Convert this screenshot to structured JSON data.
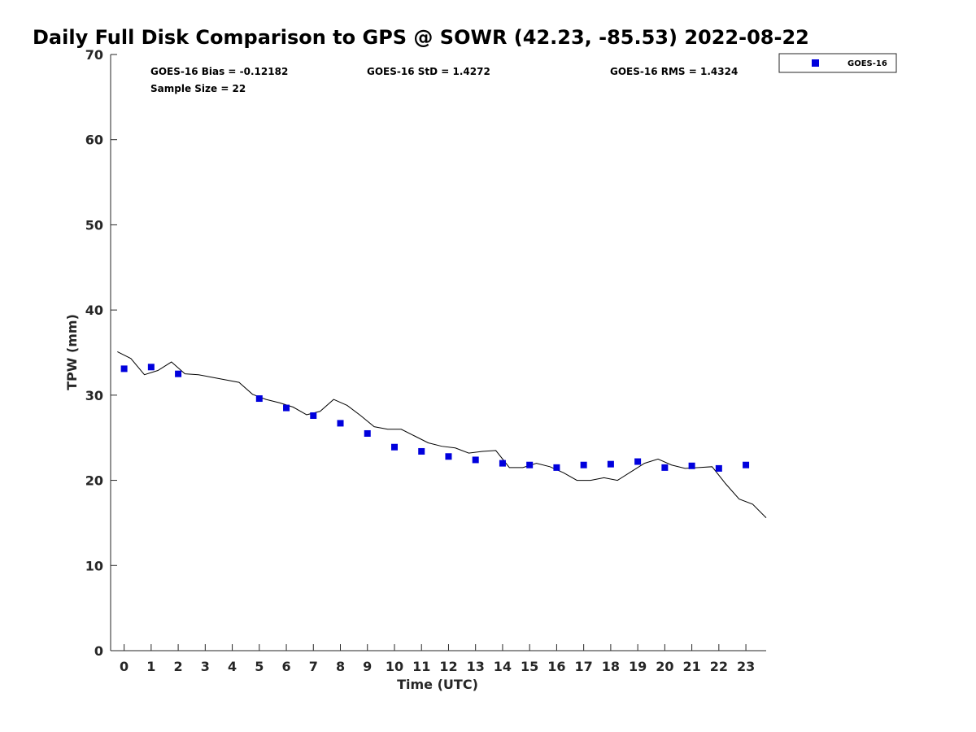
{
  "chart_data": {
    "type": "scatter",
    "title": "Daily Full Disk Comparison to GPS @ SOWR (42.23, -85.53) 2022-08-22",
    "xlabel": "Time (UTC)",
    "ylabel": "TPW (mm)",
    "xlim": [
      -0.5,
      23.75
    ],
    "ylim": [
      0,
      70
    ],
    "x_ticks": [
      "0",
      "1",
      "2",
      "3",
      "4",
      "5",
      "6",
      "7",
      "8",
      "9",
      "10",
      "11",
      "12",
      "13",
      "14",
      "15",
      "16",
      "17",
      "18",
      "19",
      "20",
      "21",
      "22",
      "23"
    ],
    "y_ticks": [
      "0",
      "10",
      "20",
      "30",
      "40",
      "50",
      "60",
      "70"
    ],
    "grid": false,
    "legend_position": "outside top-right",
    "stats": {
      "bias": "GOES-16 Bias = -0.12182",
      "std": "GOES-16 StD = 1.4272",
      "rms": "GOES-16 RMS = 1.4324",
      "sample": "Sample Size = 22"
    },
    "series": [
      {
        "name": "GOES-16",
        "kind": "markers",
        "color": "#0000dd",
        "points": [
          [
            0.0,
            33.1
          ],
          [
            1.0,
            33.3
          ],
          [
            2.0,
            32.5
          ],
          [
            5.0,
            29.6
          ],
          [
            6.0,
            28.5
          ],
          [
            7.0,
            27.6
          ],
          [
            8.0,
            26.7
          ],
          [
            9.0,
            25.5
          ],
          [
            10.0,
            23.9
          ],
          [
            11.0,
            23.4
          ],
          [
            12.0,
            22.8
          ],
          [
            13.0,
            22.4
          ],
          [
            14.0,
            22.0
          ],
          [
            15.0,
            21.8
          ],
          [
            16.0,
            21.5
          ],
          [
            17.0,
            21.8
          ],
          [
            18.0,
            21.9
          ],
          [
            19.0,
            22.2
          ],
          [
            20.0,
            21.5
          ],
          [
            21.0,
            21.7
          ],
          [
            22.0,
            21.4
          ],
          [
            23.0,
            21.8
          ]
        ]
      },
      {
        "kind": "line",
        "color": "#000000",
        "points": [
          [
            -0.25,
            35.1
          ],
          [
            0.25,
            34.3
          ],
          [
            0.75,
            32.4
          ],
          [
            1.25,
            32.9
          ],
          [
            1.75,
            33.9
          ],
          [
            2.25,
            32.5
          ],
          [
            2.75,
            32.4
          ],
          [
            3.25,
            32.1
          ],
          [
            3.75,
            31.8
          ],
          [
            4.25,
            31.5
          ],
          [
            4.75,
            30.1
          ],
          [
            5.25,
            29.5
          ],
          [
            5.75,
            29.1
          ],
          [
            6.25,
            28.6
          ],
          [
            6.75,
            27.7
          ],
          [
            7.25,
            28.1
          ],
          [
            7.75,
            29.5
          ],
          [
            8.25,
            28.8
          ],
          [
            8.75,
            27.6
          ],
          [
            9.25,
            26.3
          ],
          [
            9.75,
            26.0
          ],
          [
            10.25,
            26.0
          ],
          [
            10.75,
            25.2
          ],
          [
            11.25,
            24.4
          ],
          [
            11.75,
            24.0
          ],
          [
            12.25,
            23.8
          ],
          [
            12.75,
            23.2
          ],
          [
            13.25,
            23.4
          ],
          [
            13.75,
            23.5
          ],
          [
            14.25,
            21.5
          ],
          [
            14.75,
            21.5
          ],
          [
            15.25,
            22.0
          ],
          [
            15.75,
            21.6
          ],
          [
            16.25,
            20.9
          ],
          [
            16.75,
            20.0
          ],
          [
            17.25,
            20.0
          ],
          [
            17.75,
            20.3
          ],
          [
            18.25,
            20.0
          ],
          [
            18.75,
            21.0
          ],
          [
            19.25,
            22.0
          ],
          [
            19.75,
            22.5
          ],
          [
            20.25,
            21.8
          ],
          [
            20.75,
            21.4
          ],
          [
            21.25,
            21.5
          ],
          [
            21.75,
            21.6
          ],
          [
            22.25,
            19.6
          ],
          [
            22.75,
            17.8
          ],
          [
            23.25,
            17.2
          ],
          [
            23.75,
            15.6
          ]
        ]
      }
    ]
  }
}
